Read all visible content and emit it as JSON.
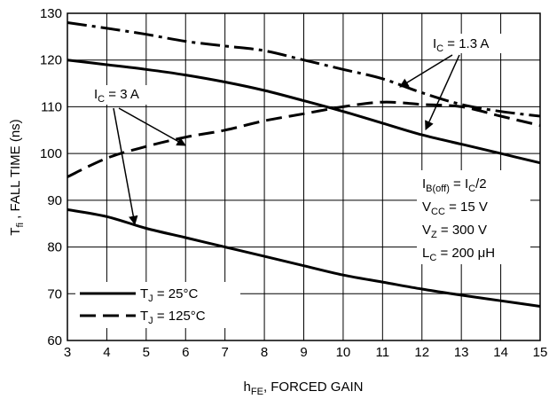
{
  "chart_data": {
    "type": "line",
    "title": "",
    "xlabel_main": "h",
    "xlabel_sub": "FE",
    "xlabel_rest": ", FORCED GAIN",
    "ylabel_main": "T",
    "ylabel_sub": "fi",
    "ylabel_rest": " , FALL TIME (ns)",
    "xlim": [
      3,
      15
    ],
    "ylim": [
      60,
      130
    ],
    "xticks": [
      3,
      4,
      5,
      6,
      7,
      8,
      9,
      10,
      11,
      12,
      13,
      14,
      15
    ],
    "yticks": [
      60,
      70,
      80,
      90,
      100,
      110,
      120,
      130
    ],
    "grid": true,
    "series": [
      {
        "name": "IC = 3 A, TJ = 25°C",
        "style": "solid",
        "x": [
          3,
          4,
          5,
          6,
          7,
          8,
          9,
          10,
          11,
          12,
          13,
          14,
          15
        ],
        "y": [
          88,
          86.5,
          84,
          82,
          80,
          78,
          76,
          74,
          72.5,
          71,
          69.7,
          68.5,
          67.3
        ]
      },
      {
        "name": "IC = 3 A, TJ = 125°C",
        "style": "dashed",
        "x": [
          3,
          4,
          5,
          6,
          7,
          8,
          9,
          10,
          11,
          12,
          13,
          14,
          15
        ],
        "y": [
          95,
          99,
          101.5,
          103.5,
          105,
          107,
          108.5,
          110,
          111,
          110.5,
          110,
          108,
          106
        ]
      },
      {
        "name": "IC = 1.3 A, TJ = 25°C",
        "style": "solid",
        "x": [
          3,
          4,
          5,
          6,
          7,
          8,
          9,
          10,
          11,
          12,
          13,
          14,
          15
        ],
        "y": [
          120,
          119,
          118,
          116.8,
          115.3,
          113.5,
          111.3,
          109,
          106.5,
          104,
          102,
          100,
          98
        ]
      },
      {
        "name": "IC = 1.3 A, TJ = 125°C",
        "style": "dashdot",
        "x": [
          3,
          4,
          5,
          6,
          7,
          8,
          9,
          10,
          11,
          12,
          13,
          14,
          15
        ],
        "y": [
          128,
          126.8,
          125.5,
          124,
          123,
          122,
          120,
          118,
          116,
          113,
          110.5,
          109,
          108
        ]
      }
    ],
    "legend": [
      {
        "label_main": "T",
        "label_sub": "J",
        "label_rest": " = 25°C",
        "style": "solid"
      },
      {
        "label_main": "T",
        "label_sub": "J",
        "label_rest": " = 125°C",
        "style": "dashed"
      }
    ],
    "annotations": {
      "ic13": {
        "main": "I",
        "sub": "C",
        "rest": " = 1.3 A"
      },
      "ic3": {
        "main": "I",
        "sub": "C",
        "rest": " = 3 A"
      },
      "conditions": [
        {
          "main": "I",
          "sub": "B(off)",
          "rest": " = I",
          "sub2": "C",
          "rest2": "/2"
        },
        {
          "main": "V",
          "sub": "CC",
          "rest": " = 15 V",
          "sub2": "",
          "rest2": ""
        },
        {
          "main": "V",
          "sub": "Z",
          "rest": " = 300 V",
          "sub2": "",
          "rest2": ""
        },
        {
          "main": "L",
          "sub": "C",
          "rest": " = 200 μH",
          "sub2": "",
          "rest2": ""
        }
      ]
    }
  }
}
